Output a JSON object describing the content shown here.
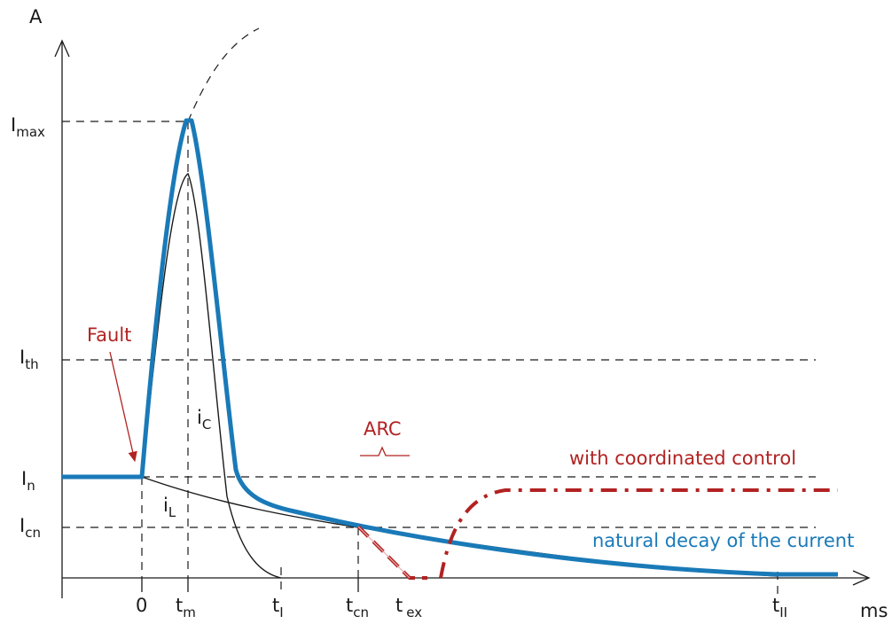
{
  "axes": {
    "y_unit": "A",
    "x_unit": "ms"
  },
  "y_labels": {
    "imax": {
      "main": "I",
      "sub": "max"
    },
    "ith": {
      "main": "I",
      "sub": "th"
    },
    "in": {
      "main": "I",
      "sub": "n"
    },
    "icn": {
      "main": "I",
      "sub": "cn"
    }
  },
  "x_labels": {
    "zero": "0",
    "tm": {
      "main": "t",
      "sub": "m"
    },
    "ti": {
      "main": "t",
      "sub": "I"
    },
    "tcn": {
      "main": "t",
      "sub": "cn"
    },
    "tex": {
      "main": "t",
      "sub": "ex"
    },
    "tii": {
      "main": "t",
      "sub": "II"
    }
  },
  "curve_labels": {
    "ic": {
      "main": "i",
      "sub": "C"
    },
    "il": {
      "main": "i",
      "sub": "L"
    }
  },
  "annotations": {
    "fault": "Fault",
    "arc": "ARC",
    "coordinated": "with coordinated control",
    "natural": "natural decay of the current"
  },
  "colors": {
    "blue": "#1a7ab8",
    "red": "#b22222",
    "black": "#1a1a1a"
  }
}
